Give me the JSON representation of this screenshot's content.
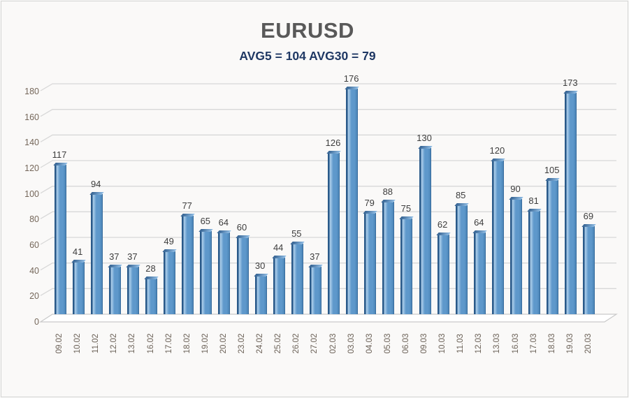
{
  "chart_data": {
    "type": "bar",
    "style": "3d-bar",
    "title": "EURUSD",
    "subtitle": "AVG5 = 104 AVG30 = 79",
    "categories": [
      "09.02",
      "10.02",
      "11.02",
      "12.02",
      "13.02",
      "16.02",
      "17.02",
      "18.02",
      "19.02",
      "20.02",
      "23.02",
      "24.02",
      "25.02",
      "26.02",
      "27.02",
      "02.03",
      "03.03",
      "04.03",
      "05.03",
      "06.03",
      "09.03",
      "10.03",
      "11.03",
      "12.03",
      "13.03",
      "16.03",
      "17.03",
      "18.03",
      "19.03",
      "20.03"
    ],
    "values": [
      117,
      41,
      94,
      37,
      37,
      28,
      49,
      77,
      65,
      64,
      60,
      30,
      44,
      55,
      37,
      126,
      176,
      79,
      88,
      75,
      130,
      62,
      85,
      64,
      120,
      90,
      81,
      105,
      173,
      69
    ],
    "data_labels": true,
    "xlabel": "",
    "ylabel": "",
    "ylim": [
      0,
      180
    ],
    "ytick_step": 20,
    "yticks": [
      0,
      20,
      40,
      60,
      80,
      100,
      120,
      140,
      160,
      180
    ],
    "grid": true,
    "legend": "none",
    "colors": {
      "bar_edge_dark": "#2a5a8a",
      "bar_highlight": "#aecfeb",
      "bar_face": "#5e98cb",
      "bar_face_right": "#4c86b8",
      "cap_light": "#8fbce4",
      "cap_dark": "#315f8f",
      "title": "#595959",
      "subtitle": "#1f3864",
      "value_label": "#3d3d3d",
      "axis_label": "#75675a",
      "gridline": "#d8d8d8",
      "floor_fill": "#ffffff",
      "floor_border": "#c9c9c9",
      "background": "#faf9f8",
      "wall": "#ffffff"
    }
  }
}
